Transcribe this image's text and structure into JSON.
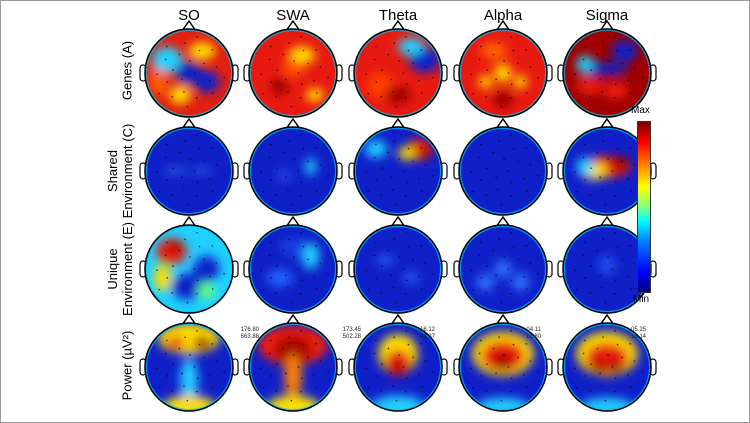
{
  "columns": [
    "SO",
    "SWA",
    "Theta",
    "Alpha",
    "Sigma"
  ],
  "rows": [
    {
      "label_lines": [
        "Genes (A)"
      ]
    },
    {
      "label_lines": [
        "Shared",
        "Environment (C)"
      ]
    },
    {
      "label_lines": [
        "Unique",
        "Environment (E)"
      ]
    },
    {
      "label_lines": [
        "Power (µV²)"
      ]
    }
  ],
  "power_ranges": [
    {
      "top": "176.80",
      "bottom": "663.88"
    },
    {
      "top": "173.45",
      "bottom": "502.28"
    },
    {
      "top": "16.12",
      "bottom": "43.87"
    },
    {
      "top": "04.11",
      "bottom": "12.80"
    },
    {
      "top": "05.25",
      "bottom": "18.14"
    }
  ],
  "colorbar": {
    "max_label": "Max",
    "min_label": "Min",
    "colormap": "jet",
    "colors": [
      "#00007f",
      "#0000ff",
      "#00ffff",
      "#ffff00",
      "#ff0000",
      "#7f0000"
    ]
  }
}
